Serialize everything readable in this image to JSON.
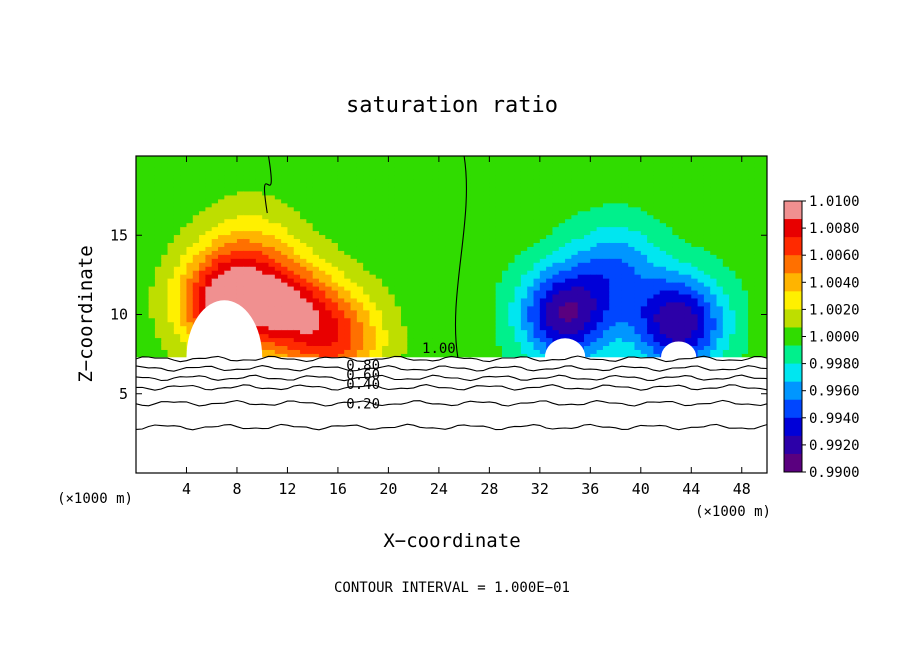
{
  "chart_data": {
    "type": "heatmap",
    "title": "saturation ratio",
    "xlabel": "X−coordinate",
    "ylabel": "Z−coordinate",
    "x_unit_left": "(×1000 m)",
    "x_unit_right": "(×1000 m)",
    "footer": "CONTOUR INTERVAL = 1.000E−01",
    "xlim": [
      0,
      50
    ],
    "ylim": [
      0,
      20
    ],
    "x_ticks": [
      4,
      8,
      12,
      16,
      20,
      24,
      28,
      32,
      36,
      40,
      44,
      48
    ],
    "x_tick_labels": [
      "4",
      "8",
      "12",
      "16",
      "20",
      "24",
      "28",
      "32",
      "36",
      "40",
      "44",
      "48"
    ],
    "y_ticks": [
      5,
      10,
      15
    ],
    "y_tick_labels": [
      "5",
      "10",
      "15"
    ],
    "colorbar": {
      "min": 0.99,
      "max": 1.01,
      "labels": [
        "1.0100",
        "1.0080",
        "1.0060",
        "1.0040",
        "1.0020",
        "1.0000",
        "0.9980",
        "0.9960",
        "0.9940",
        "0.9920",
        "0.9900"
      ],
      "colors": [
        "#5a007f",
        "#2c00a8",
        "#0000d8",
        "#0046ff",
        "#0096ff",
        "#00e6f0",
        "#00f08c",
        "#30dc00",
        "#bede00",
        "#fff000",
        "#ffb400",
        "#ff7000",
        "#ff2a00",
        "#e80000",
        "#f09090"
      ]
    },
    "contour_labels": [
      "1.00",
      "0.80",
      "0.60",
      "0.40",
      "0.20"
    ],
    "contour_levels": [
      1.0,
      0.8,
      0.6,
      0.4,
      0.2
    ],
    "contour_heights": [
      7.2,
      6.6,
      6.0,
      5.4,
      4.4,
      2.9
    ],
    "field": {
      "background": 1.0,
      "cloud_base": 7.3,
      "features": [
        {
          "x": 7,
          "z": 10.8,
          "amp": 0.0095
        },
        {
          "x": 12,
          "z": 10.5,
          "amp": 0.0075
        },
        {
          "x": 9,
          "z": 14,
          "amp": 0.003
        },
        {
          "x": 16,
          "z": 8.5,
          "amp": 0.006
        },
        {
          "x": 34,
          "z": 10,
          "amp": -0.0085
        },
        {
          "x": 43,
          "z": 9.5,
          "amp": -0.0085
        },
        {
          "x": 38,
          "z": 13,
          "amp": -0.004
        }
      ]
    }
  }
}
